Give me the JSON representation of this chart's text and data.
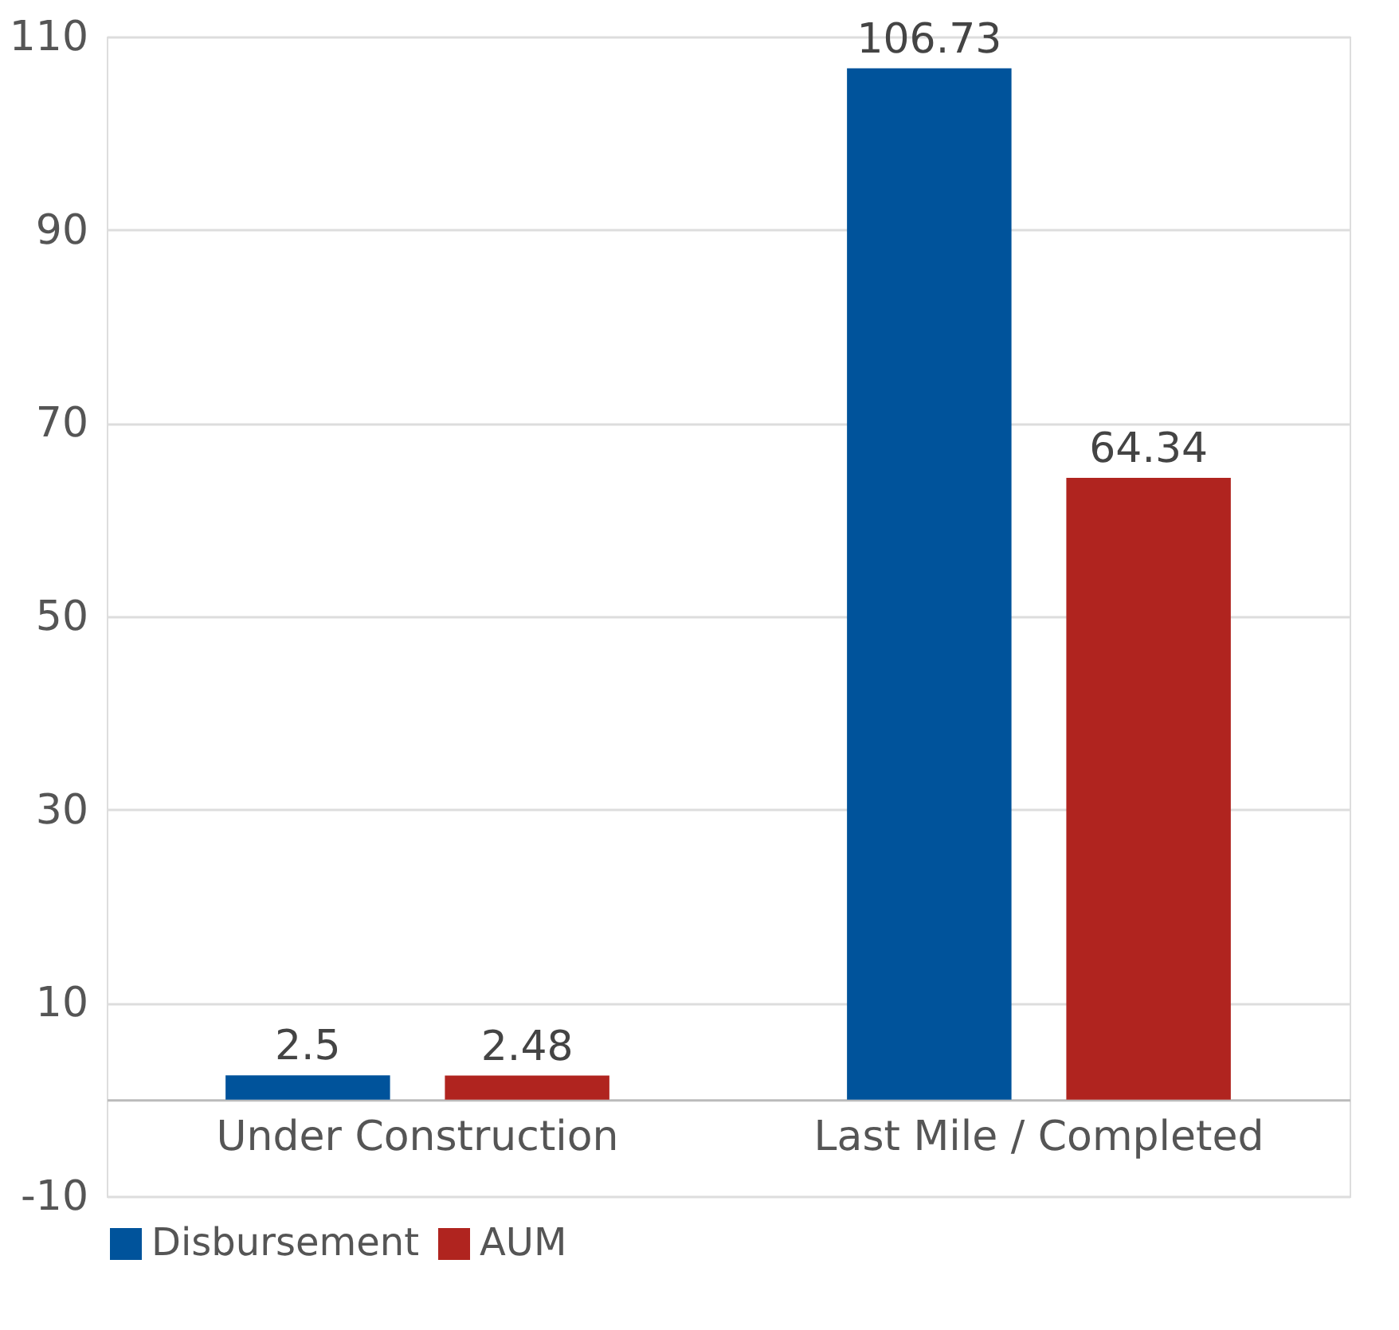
{
  "chart_data": {
    "type": "bar",
    "categories": [
      "Under Construction",
      "Last Mile / Completed"
    ],
    "series": [
      {
        "name": "Disbursement",
        "color": "#00539b",
        "values": [
          2.5,
          106.73
        ]
      },
      {
        "name": "AUM",
        "color": "#b0241f",
        "values": [
          2.48,
          64.34
        ]
      }
    ],
    "ylim": [
      -10,
      110
    ],
    "yticks": [
      -10,
      10,
      30,
      50,
      70,
      90,
      110
    ],
    "grid": "y",
    "legend": "bottom",
    "data_labels": true
  }
}
